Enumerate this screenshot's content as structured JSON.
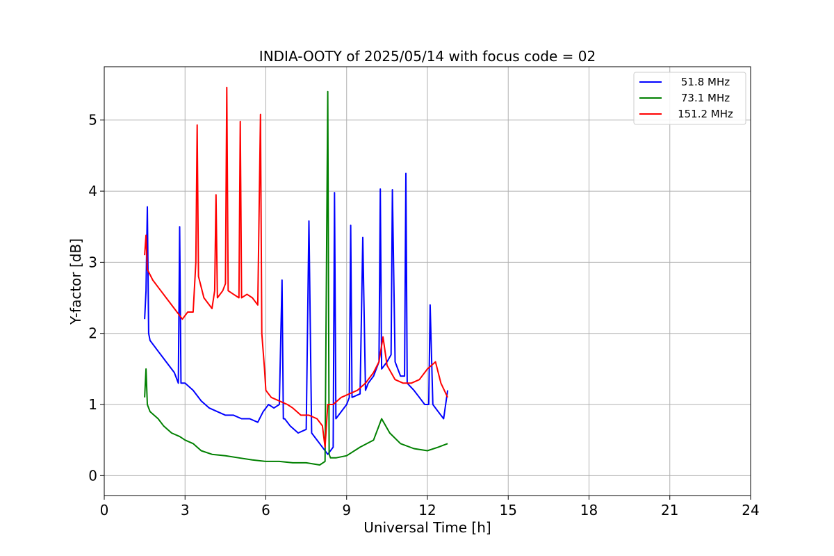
{
  "chart_data": {
    "type": "line",
    "title": "INDIA-OOTY of 2025/05/14 with focus code = 02",
    "xlabel": "Universal Time [h]",
    "ylabel": "Y-factor [dB]",
    "xlim": [
      0,
      24
    ],
    "ylim": [
      -0.28,
      5.75
    ],
    "xticks": [
      0,
      3,
      6,
      9,
      12,
      15,
      18,
      21,
      24
    ],
    "yticks": [
      0,
      1,
      2,
      3,
      4,
      5
    ],
    "grid": true,
    "legend_position": "top-right",
    "series": [
      {
        "name": "51.8 MHz",
        "color": "#0000ff",
        "x": [
          1.5,
          1.55,
          1.6,
          1.65,
          1.7,
          2.0,
          2.3,
          2.6,
          2.75,
          2.8,
          2.85,
          3.0,
          3.3,
          3.6,
          3.9,
          4.2,
          4.5,
          4.8,
          5.1,
          5.4,
          5.7,
          5.9,
          6.1,
          6.3,
          6.5,
          6.6,
          6.65,
          6.7,
          6.9,
          7.2,
          7.5,
          7.6,
          7.7,
          8.0,
          8.3,
          8.5,
          8.55,
          8.6,
          9.0,
          9.1,
          9.15,
          9.2,
          9.5,
          9.6,
          9.7,
          9.8,
          10.0,
          10.2,
          10.25,
          10.3,
          10.5,
          10.65,
          10.7,
          10.8,
          11.0,
          11.15,
          11.2,
          11.25,
          11.5,
          11.7,
          11.9,
          12.05,
          12.1,
          12.2,
          12.4,
          12.6,
          12.75
        ],
        "y": [
          2.2,
          2.6,
          3.78,
          2.0,
          1.9,
          1.75,
          1.6,
          1.45,
          1.3,
          3.5,
          1.3,
          1.3,
          1.2,
          1.05,
          0.95,
          0.9,
          0.85,
          0.85,
          0.8,
          0.8,
          0.75,
          0.9,
          1.0,
          0.95,
          1.0,
          2.75,
          0.8,
          0.8,
          0.7,
          0.6,
          0.65,
          3.58,
          0.6,
          0.45,
          0.3,
          0.4,
          3.98,
          0.8,
          1.0,
          1.1,
          3.52,
          1.1,
          1.15,
          3.35,
          1.2,
          1.3,
          1.4,
          1.6,
          4.03,
          1.5,
          1.6,
          1.7,
          4.02,
          1.6,
          1.4,
          1.4,
          4.25,
          1.3,
          1.2,
          1.1,
          1.0,
          1.0,
          2.4,
          1.0,
          0.9,
          0.8,
          1.2
        ]
      },
      {
        "name": "73.1 MHz",
        "color": "#008000",
        "x": [
          1.5,
          1.55,
          1.6,
          1.7,
          2.0,
          2.2,
          2.5,
          2.8,
          3.0,
          3.3,
          3.6,
          4.0,
          4.5,
          5.0,
          5.5,
          6.0,
          6.5,
          7.0,
          7.5,
          8.0,
          8.2,
          8.3,
          8.35,
          8.4,
          8.6,
          9.0,
          9.5,
          10.0,
          10.3,
          10.6,
          11.0,
          11.5,
          12.0,
          12.4,
          12.75
        ],
        "y": [
          1.1,
          1.5,
          1.0,
          0.9,
          0.8,
          0.7,
          0.6,
          0.55,
          0.5,
          0.45,
          0.35,
          0.3,
          0.28,
          0.25,
          0.22,
          0.2,
          0.2,
          0.18,
          0.18,
          0.15,
          0.2,
          5.4,
          0.3,
          0.25,
          0.25,
          0.28,
          0.4,
          0.5,
          0.8,
          0.6,
          0.45,
          0.38,
          0.35,
          0.4,
          0.45
        ]
      },
      {
        "name": "151.2 MHz",
        "color": "#ff0000",
        "x": [
          1.5,
          1.55,
          1.6,
          1.8,
          2.0,
          2.3,
          2.6,
          2.9,
          3.1,
          3.3,
          3.4,
          3.45,
          3.5,
          3.7,
          4.0,
          4.1,
          4.15,
          4.2,
          4.4,
          4.5,
          4.55,
          4.6,
          4.8,
          5.0,
          5.05,
          5.1,
          5.3,
          5.5,
          5.7,
          5.8,
          5.85,
          5.95,
          6.0,
          6.2,
          6.5,
          6.8,
          7.0,
          7.3,
          7.6,
          7.9,
          8.1,
          8.2,
          8.3,
          8.5,
          8.8,
          9.1,
          9.4,
          9.7,
          10.0,
          10.2,
          10.35,
          10.5,
          10.8,
          11.1,
          11.4,
          11.7,
          12.0,
          12.3,
          12.5,
          12.75
        ],
        "y": [
          3.1,
          3.38,
          2.9,
          2.75,
          2.65,
          2.5,
          2.35,
          2.2,
          2.3,
          2.3,
          3.0,
          4.93,
          2.8,
          2.5,
          2.35,
          2.6,
          3.95,
          2.5,
          2.6,
          2.7,
          5.46,
          2.6,
          2.55,
          2.5,
          4.98,
          2.5,
          2.55,
          2.5,
          2.4,
          5.08,
          2.0,
          1.5,
          1.2,
          1.1,
          1.05,
          1.0,
          0.95,
          0.85,
          0.85,
          0.8,
          0.7,
          0.4,
          1.0,
          1.0,
          1.1,
          1.15,
          1.2,
          1.3,
          1.45,
          1.6,
          1.95,
          1.55,
          1.35,
          1.3,
          1.3,
          1.35,
          1.5,
          1.6,
          1.3,
          1.1
        ]
      }
    ]
  }
}
